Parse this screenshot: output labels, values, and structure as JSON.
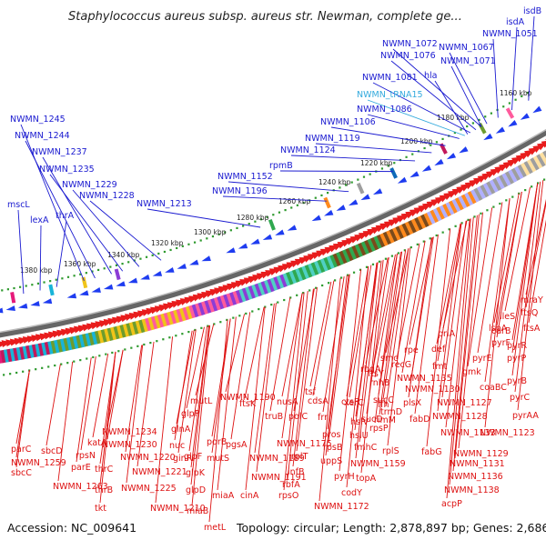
{
  "title": "Staphylococcus aureus subsp. aureus str. Newman, complete ge...",
  "footer": {
    "accession": "Accession: NC_009641",
    "topology": "Topology: circular; Length: 2,878,897 bp; Genes: 2,686"
  },
  "colors": {
    "upper_labels": "#1a1ad0",
    "trna_label": "#33aadd",
    "lower_labels": "#dd1111",
    "backbone": "#888888",
    "dots": "#2e9a2e",
    "forward_arrows": "#e81c1c",
    "reverse_arrows": "#1e3cf0"
  },
  "map": {
    "kbp_ticks": [
      "1160 kbp",
      "1180 kbp",
      "1200 kbp",
      "1220 kbp",
      "1240 kbp",
      "1260 kbp",
      "1280 kbp",
      "1300 kbp",
      "1320 kbp",
      "1340 kbp",
      "1360 kbp",
      "1380 kbp"
    ],
    "upper_genes": [
      "isdB",
      "isdA",
      "NWMN_1051",
      "NWMN_1067",
      "NWMN_1072",
      "NWMN_1071",
      "NWMN_1076",
      "NWMN_1081",
      "hla",
      "NWMN_tRNA15",
      "NWMN_1086",
      "NWMN_1106",
      "NWMN_1119",
      "NWMN_1124",
      "rpmB",
      "NWMN_1152",
      "NWMN_1196",
      "NWMN_1213",
      "NWMN_1228",
      "NWMN_1229",
      "NWMN_1235",
      "NWMN_1237",
      "NWMN_1244",
      "NWMN_1245",
      "mscL",
      "lexA",
      "thrA"
    ],
    "lower_genes": [
      "mraY",
      "ftsQ",
      "ileS",
      "ftsA",
      "lspA",
      "carB",
      "pyrF",
      "pyrR",
      "pyrE",
      "pyrP",
      "gmk",
      "coaBC",
      "pyrB",
      "pyrC",
      "pyrAA",
      "NWMN_1123",
      "priA",
      "def",
      "fmt",
      "rpe",
      "recG",
      "NWMN_1135",
      "smc",
      "NWMN_1130",
      "NWMN_1127",
      "NWMN_1128",
      "NWMN_1133",
      "NWMN_1129",
      "NWMN_1131",
      "NWMN_1136",
      "NWMN_1138",
      "acpP",
      "fabG",
      "fabD",
      "plsX",
      "ftsY",
      "rbgA",
      "rnhB",
      "ffh",
      "trmD",
      "rpsP",
      "rimM",
      "sucC",
      "sucD",
      "rplS",
      "fmhC",
      "hslU",
      "hslV",
      "ctsR",
      "xerC",
      "pros",
      "topA",
      "NWMN_1159",
      "codY",
      "pyrH",
      "uppS",
      "rpsB",
      "tsf",
      "cdsA",
      "frr",
      "polC",
      "rplT",
      "NWMN_1175",
      "infB",
      "rbfA",
      "nusA",
      "ftsK",
      "truB",
      "rpsO",
      "NWMN_1172",
      "NWMN_1189",
      "NWMN_1190",
      "NWMN_1191",
      "pgsA",
      "cinA",
      "porB",
      "mutS",
      "mutL",
      "glpP",
      "glpF",
      "glpK",
      "glpD",
      "miaB",
      "miaA",
      "ginR",
      "glnA",
      "nuc",
      "NWMN_1234",
      "NWMN_1230",
      "NWMN_1220",
      "NWMN_1221",
      "NWMN_1225",
      "NWMN_1210",
      "metL",
      "thrC",
      "thrB",
      "tkt",
      "katA",
      "rpsN",
      "parE",
      "parC",
      "sbcC",
      "sbcD",
      "NWMN_1263",
      "NWMN_1259"
    ]
  }
}
